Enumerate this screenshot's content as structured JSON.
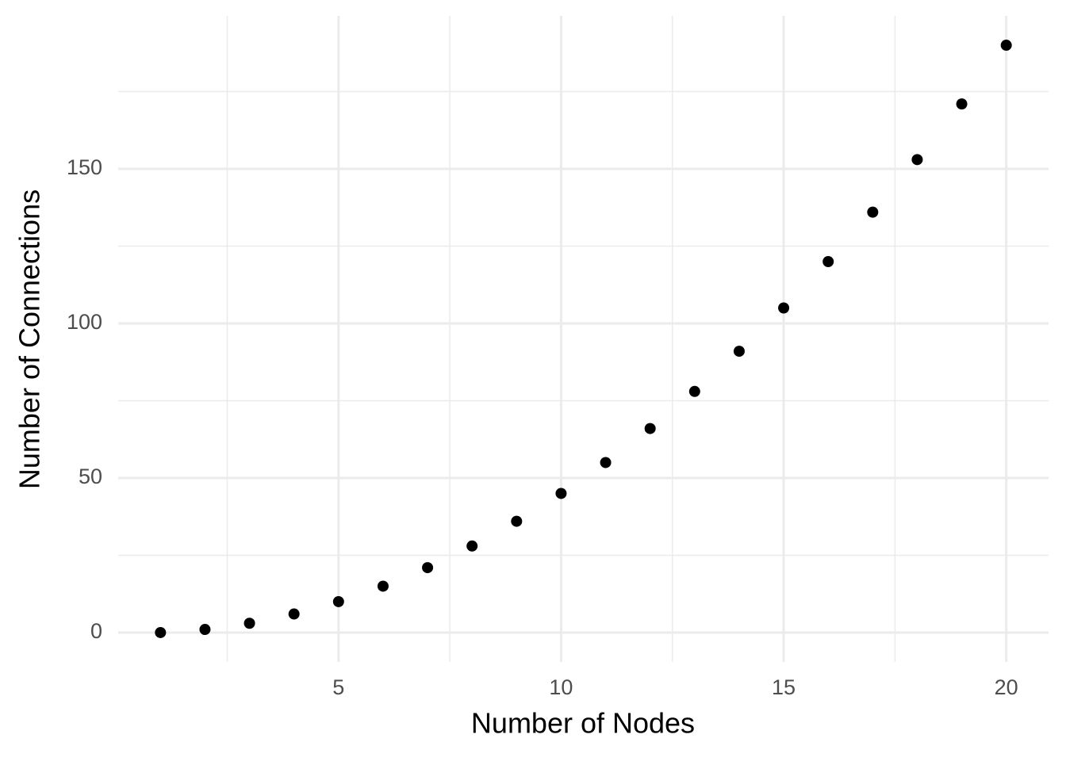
{
  "chart_data": {
    "type": "scatter",
    "x_label": "Number of Nodes",
    "y_label": "Number of Connections",
    "x": [
      1,
      2,
      3,
      4,
      5,
      6,
      7,
      8,
      9,
      10,
      11,
      12,
      13,
      14,
      15,
      16,
      17,
      18,
      19,
      20
    ],
    "series": [
      {
        "color": "#000000",
        "values": [
          0,
          1,
          3,
          6,
          10,
          15,
          21,
          28,
          36,
          45,
          55,
          66,
          78,
          91,
          105,
          120,
          136,
          153,
          171,
          190
        ]
      }
    ],
    "xlim": [
      0.05,
      20.95
    ],
    "xticks": [
      5,
      10,
      15,
      20
    ],
    "xminor": [
      2.5,
      7.5,
      12.5,
      17.5
    ],
    "ylim": [
      -9.5,
      199.5
    ],
    "yticks": [
      0,
      50,
      100,
      150
    ],
    "yminor": [
      25,
      75,
      125,
      175
    ],
    "grid": true
  }
}
